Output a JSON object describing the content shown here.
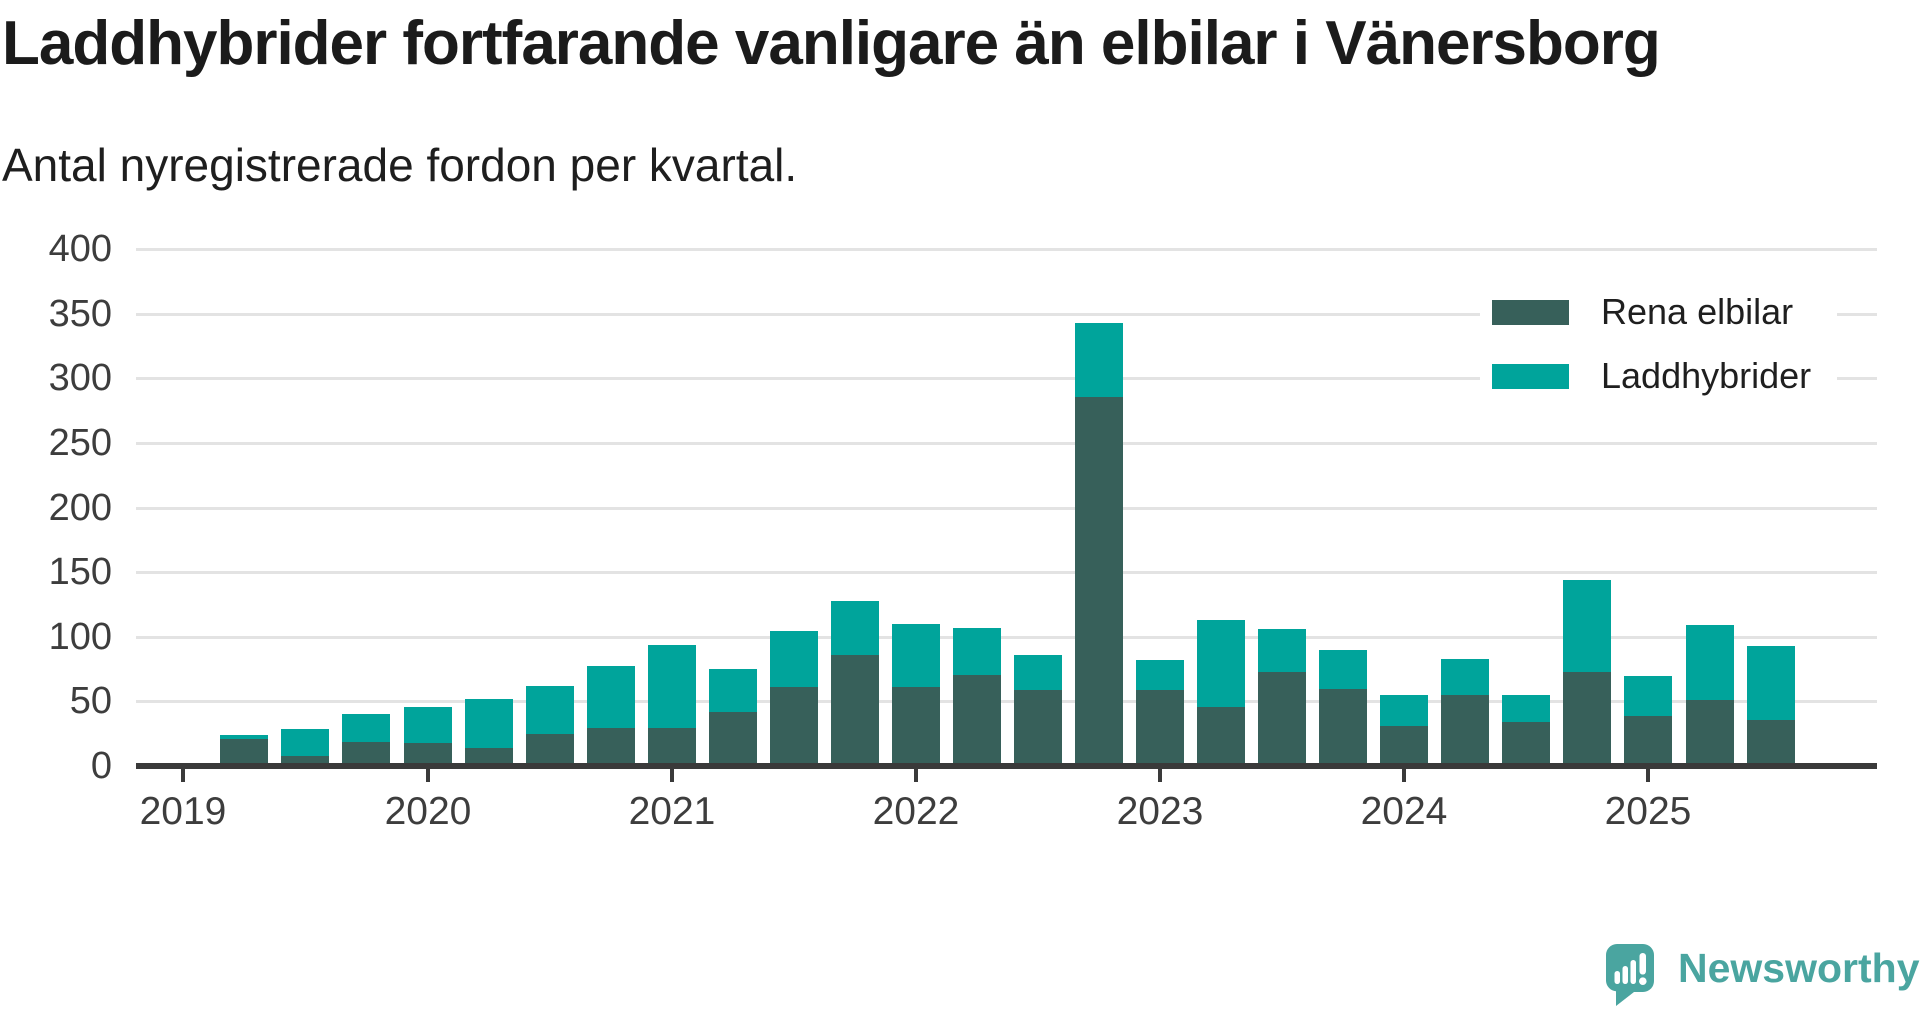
{
  "header": {
    "title": "Laddhybrider fortfarande vanligare än elbilar i Vänersborg",
    "subtitle": "Antal nyregistrerade fordon per kvartal."
  },
  "chart_data": {
    "type": "bar",
    "stacked": true,
    "title": "Laddhybrider fortfarande vanligare än elbilar i Vänersborg",
    "subtitle": "Antal nyregistrerade fordon per kvartal.",
    "xlabel": "",
    "ylabel": "",
    "ylim": [
      0,
      400
    ],
    "y_ticks": [
      0,
      50,
      100,
      150,
      200,
      250,
      300,
      350,
      400
    ],
    "x_tick_labels": [
      "2019",
      "2020",
      "2021",
      "2022",
      "2023",
      "2024",
      "2025"
    ],
    "grid": "horizontal",
    "legend_position": "top-right",
    "categories": [
      "2019 Q2",
      "2019 Q3",
      "2019 Q4",
      "2020 Q1",
      "2020 Q2",
      "2020 Q3",
      "2020 Q4",
      "2021 Q1",
      "2021 Q2",
      "2021 Q3",
      "2021 Q4",
      "2022 Q1",
      "2022 Q2",
      "2022 Q3",
      "2022 Q4",
      "2023 Q1",
      "2023 Q2",
      "2023 Q3",
      "2023 Q4",
      "2024 Q1",
      "2024 Q2",
      "2024 Q3",
      "2024 Q4",
      "2025 Q1",
      "2025 Q2",
      "2025 Q3"
    ],
    "series": [
      {
        "name": "Rena elbilar",
        "color": "#37605a",
        "values": [
          20,
          7,
          18,
          17,
          13,
          24,
          29,
          29,
          41,
          60,
          85,
          60,
          70,
          58,
          285,
          58,
          45,
          72,
          59,
          30,
          54,
          33,
          72,
          38,
          50,
          35
        ]
      },
      {
        "name": "Laddhybrider",
        "color": "#00a49b",
        "values": [
          3,
          21,
          22,
          28,
          38,
          37,
          48,
          64,
          33,
          43,
          42,
          49,
          36,
          27,
          57,
          23,
          67,
          33,
          30,
          24,
          28,
          21,
          71,
          31,
          58,
          57
        ]
      }
    ]
  },
  "footer": {
    "brand": "Newsworthy",
    "brand_color": "#4aa5a0"
  }
}
